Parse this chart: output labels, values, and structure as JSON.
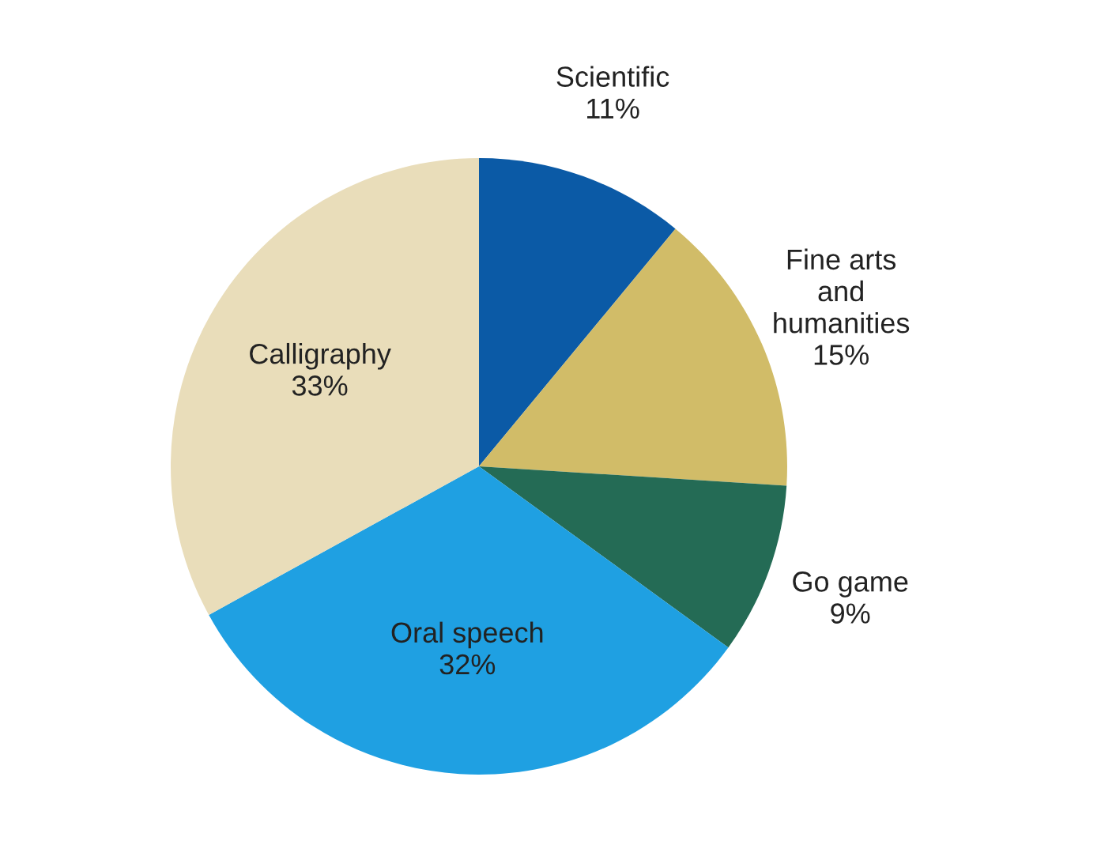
{
  "chart_data": {
    "type": "pie",
    "categories": [
      "Scientific",
      "Fine arts and humanities",
      "Go game",
      "Oral speech",
      "Calligraphy"
    ],
    "values": [
      11,
      15,
      9,
      32,
      33
    ],
    "colors": [
      "#0b5aa6",
      "#d1bc68",
      "#246b55",
      "#1fa0e2",
      "#e9ddba"
    ],
    "value_labels": [
      "11%",
      "15%",
      "9%",
      "32%",
      "33%"
    ]
  }
}
